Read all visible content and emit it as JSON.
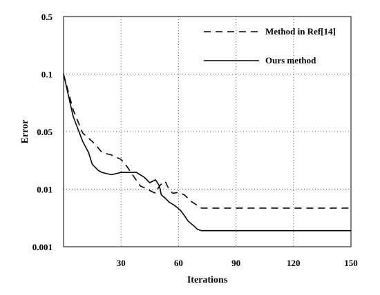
{
  "chart_data": {
    "type": "line",
    "xlabel": "Iterations",
    "ylabel": "Error",
    "xlim": [
      0,
      150
    ],
    "ylim": [
      0.001,
      0.5
    ],
    "y_scale": "log",
    "x_ticks": [
      30,
      60,
      90,
      120,
      150
    ],
    "y_ticks": [
      {
        "value": 0.001,
        "label": "0.001"
      },
      {
        "value": 0.01,
        "label": "0.01"
      },
      {
        "value": 0.05,
        "label": "0.05"
      },
      {
        "value": 0.1,
        "label": "0.1"
      },
      {
        "value": 0.5,
        "label": "0.5"
      }
    ],
    "grid": true,
    "legend_position": "top-right",
    "series": [
      {
        "name": "Method in Ref[14]",
        "style": "dashed",
        "color": "#000000",
        "x": [
          0,
          5,
          10,
          15,
          18,
          20,
          25,
          30,
          33,
          36,
          40,
          45,
          48,
          50,
          53,
          55,
          57,
          60,
          63,
          67,
          72,
          80,
          100,
          120,
          150
        ],
        "y": [
          0.1,
          0.065,
          0.048,
          0.038,
          0.032,
          0.028,
          0.026,
          0.023,
          0.019,
          0.015,
          0.011,
          0.0095,
          0.0085,
          0.011,
          0.0125,
          0.01,
          0.0085,
          0.0088,
          0.008,
          0.006,
          0.0047,
          0.0047,
          0.0047,
          0.0047,
          0.0047
        ]
      },
      {
        "name": "Ours method",
        "style": "solid",
        "color": "#000000",
        "x": [
          0,
          5,
          10,
          13,
          15,
          18,
          20,
          25,
          30,
          35,
          38,
          42,
          45,
          48,
          50,
          51,
          53,
          55,
          58,
          61,
          63,
          65,
          68,
          70,
          72,
          80,
          100,
          150
        ],
        "y": [
          0.1,
          0.06,
          0.038,
          0.028,
          0.02,
          0.017,
          0.016,
          0.015,
          0.016,
          0.016,
          0.016,
          0.014,
          0.012,
          0.013,
          0.011,
          0.008,
          0.007,
          0.006,
          0.0052,
          0.0043,
          0.0035,
          0.0028,
          0.0023,
          0.002,
          0.0019,
          0.0019,
          0.0019,
          0.0019
        ]
      }
    ]
  }
}
